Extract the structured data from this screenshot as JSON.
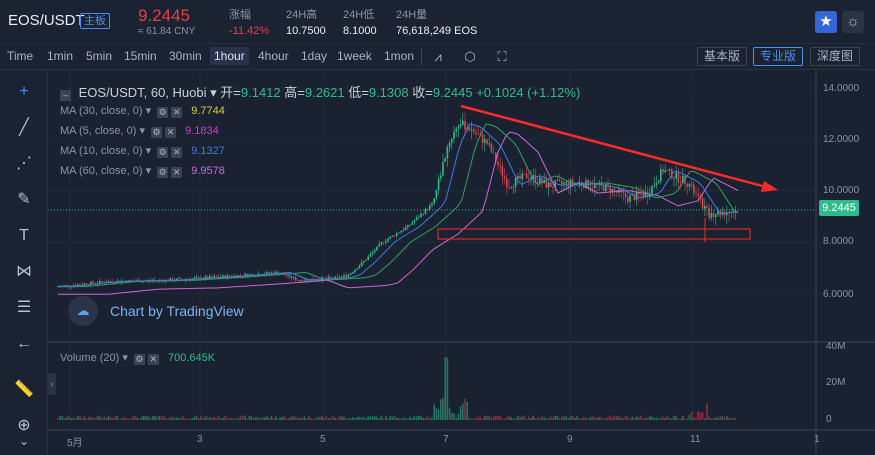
{
  "ticker": {
    "pair": "EOS/USDT",
    "badge": "主板",
    "price": "9.2445",
    "cny": "≈ 61.84 CNY",
    "change_label": "涨幅",
    "change_value": "-11.42%",
    "high_label": "24H高",
    "high_value": "10.7500",
    "low_label": "24H低",
    "low_value": "8.1000",
    "vol_label": "24H量",
    "vol_value": "76,618,249 EOS"
  },
  "toolbar": {
    "intervals": [
      "Time",
      "1min",
      "5min",
      "15min",
      "30min",
      "1hour",
      "4hour",
      "1day",
      "1week",
      "1mon"
    ],
    "active_interval": "1hour",
    "views": [
      "基本版",
      "专业版",
      "深度图"
    ],
    "active_view": "专业版"
  },
  "legend": {
    "title": "EOS/USDT, 60, Huobi",
    "open_label": "开=",
    "open": "9.1412",
    "high_label": "高=",
    "high": "9.2621",
    "low_label": "低=",
    "low": "9.1308",
    "close_label": "收=",
    "close": "9.2445",
    "change": "+0.1024 (+1.12%)"
  },
  "indicators": [
    {
      "label": "MA (30, close, 0)",
      "value": "9.7744",
      "color": "#d7d23c"
    },
    {
      "label": "MA (5, close, 0)",
      "value": "9.1834",
      "color": "#d33bc7"
    },
    {
      "label": "MA (10, close, 0)",
      "value": "9.1327",
      "color": "#3b7de0"
    },
    {
      "label": "MA (60, close, 0)",
      "value": "9.9578",
      "color": "#cc6ad6"
    }
  ],
  "watermark": "Chart by TradingView",
  "volume": {
    "label": "Volume (20)",
    "value": "700.645K"
  },
  "price_axis": [
    "14.0000",
    "12.0000",
    "10.0000",
    "8.0000",
    "6.0000"
  ],
  "current_price_tag": "9.2445",
  "volume_axis": [
    "40M",
    "20M",
    "0"
  ],
  "time_axis": [
    "5月",
    "3",
    "5",
    "7",
    "9",
    "11",
    "1"
  ],
  "colors": {
    "up": "#2ebc8c",
    "down": "#e0414a",
    "trendline": "#ff2a2a"
  }
}
